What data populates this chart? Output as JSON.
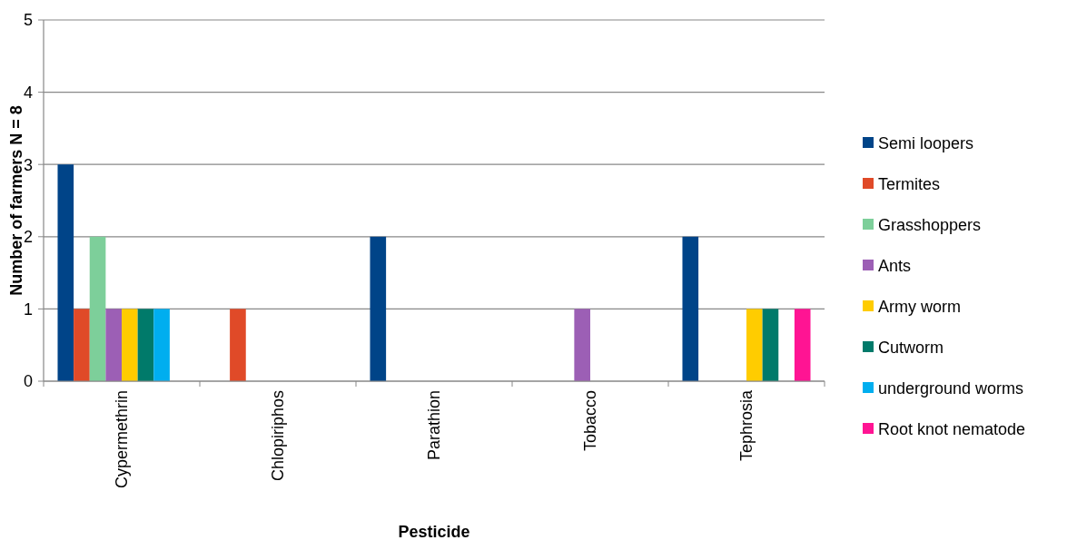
{
  "chart_data": {
    "type": "bar",
    "xlabel": "Pesticide",
    "ylabel": "Number of farmers N = 8",
    "categories": [
      "Cypermethrin",
      "Chlopiriphos",
      "Parathion",
      "Tobacco",
      "Tephrosia"
    ],
    "series": [
      {
        "name": "Semi loopers",
        "color": "#004488",
        "values": [
          3,
          0,
          2,
          0,
          2
        ]
      },
      {
        "name": "Termites",
        "color": "#e04a28",
        "values": [
          1,
          1,
          0,
          0,
          0
        ]
      },
      {
        "name": "Grasshoppers",
        "color": "#7dcf9a",
        "values": [
          2,
          0,
          0,
          0,
          0
        ]
      },
      {
        "name": "Ants",
        "color": "#9c5fb5",
        "values": [
          1,
          0,
          0,
          1,
          0
        ]
      },
      {
        "name": "Army worm",
        "color": "#ffcc00",
        "values": [
          1,
          0,
          0,
          0,
          1
        ]
      },
      {
        "name": "Cutworm",
        "color": "#007a6a",
        "values": [
          1,
          0,
          0,
          0,
          1
        ]
      },
      {
        "name": "underground worms",
        "color": "#00aeef",
        "values": [
          1,
          0,
          0,
          0,
          0
        ]
      },
      {
        "name": "Root knot nematode",
        "color": "#ff1493",
        "values": [
          0,
          0,
          0,
          0,
          1
        ]
      }
    ],
    "ylim": [
      0,
      5
    ],
    "yticks": [
      0,
      1,
      2,
      3,
      4,
      5
    ],
    "grid": "y",
    "legend": "right"
  }
}
